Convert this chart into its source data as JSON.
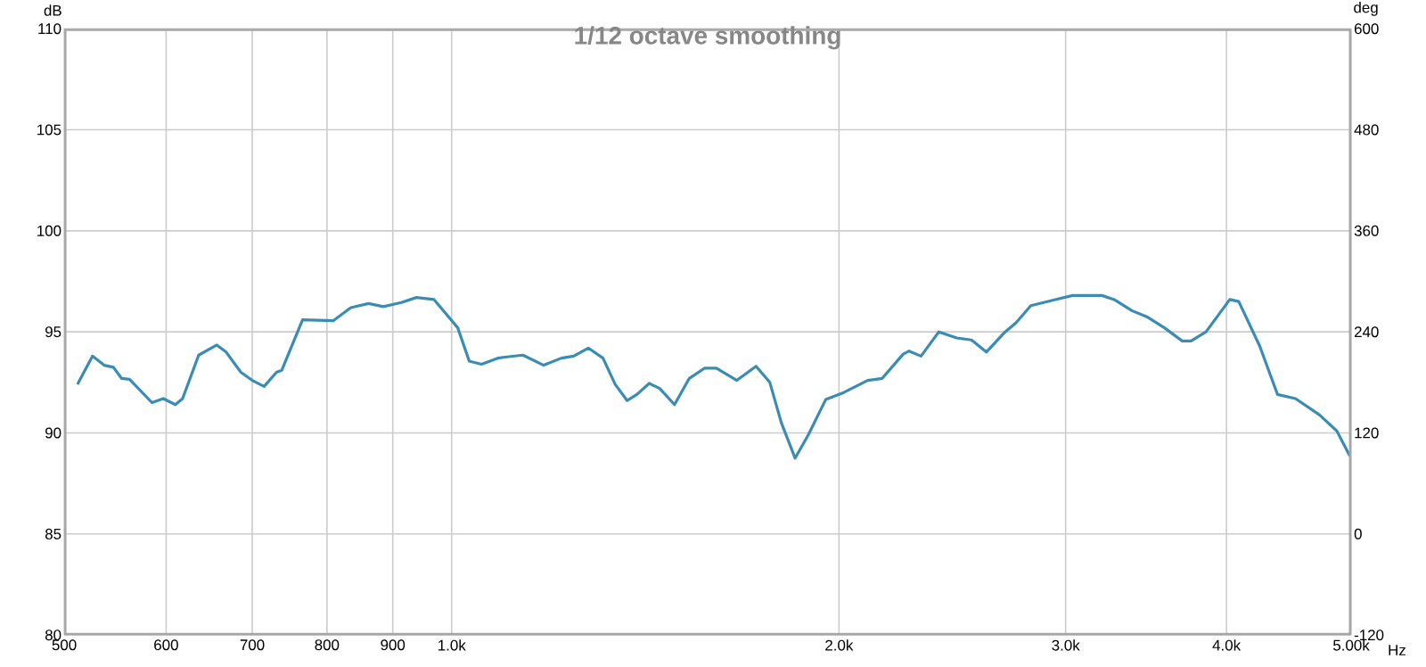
{
  "chart_data": {
    "type": "line",
    "title": "1/12 octave smoothing",
    "xlabel": "Hz",
    "ylabel": "dB",
    "y2label": "deg",
    "log": "x",
    "grid": true,
    "color": "#3a8cb4",
    "x": [
      512,
      526,
      537,
      546,
      554,
      562,
      585,
      597,
      610,
      618,
      636,
      657,
      668,
      686,
      700,
      715,
      731,
      738,
      766,
      809,
      835,
      862,
      885,
      914,
      939,
      969,
      1011,
      1032,
      1055,
      1086,
      1100,
      1136,
      1179,
      1217,
      1244,
      1277,
      1311,
      1340,
      1369,
      1393,
      1424,
      1451,
      1490,
      1530,
      1572,
      1606,
      1666,
      1724,
      1767,
      1804,
      1849,
      1893,
      1953,
      2017,
      2105,
      2161,
      2243,
      2267,
      2316,
      2391,
      2469,
      2535,
      2603,
      2687,
      2745,
      2819,
      2926,
      3037,
      3202,
      3272,
      3378,
      3469,
      3580,
      3696,
      3755,
      3857,
      4024,
      4089,
      4245,
      4383,
      4526,
      4723,
      4873,
      4989
    ],
    "values": [
      92.4,
      93.8,
      93.35,
      93.25,
      92.7,
      92.65,
      91.5,
      91.7,
      91.4,
      91.7,
      93.85,
      94.35,
      94.0,
      93.0,
      92.6,
      92.3,
      93.0,
      93.1,
      95.6,
      95.55,
      96.2,
      96.4,
      96.25,
      96.45,
      96.7,
      96.6,
      95.2,
      93.55,
      93.4,
      93.7,
      93.75,
      93.85,
      93.35,
      93.7,
      93.8,
      94.2,
      93.7,
      92.4,
      91.6,
      91.9,
      92.45,
      92.2,
      91.4,
      92.7,
      93.2,
      93.2,
      92.6,
      93.3,
      92.5,
      90.5,
      88.75,
      89.9,
      91.65,
      92.0,
      92.6,
      92.7,
      93.9,
      94.05,
      93.8,
      95.0,
      94.7,
      94.6,
      94.0,
      94.95,
      95.45,
      96.3,
      96.55,
      96.8,
      96.8,
      96.6,
      96.05,
      95.75,
      95.2,
      94.55,
      94.55,
      95.0,
      96.6,
      96.5,
      94.3,
      91.9,
      91.7,
      90.9,
      90.1,
      88.85
    ],
    "xlim": [
      500,
      5000
    ],
    "xticks": [
      500,
      600,
      700,
      800,
      900,
      {
        "value": 1000,
        "label": "1.0k"
      },
      {
        "value": 2000,
        "label": "2.0k"
      },
      {
        "value": 3000,
        "label": "3.0k"
      },
      {
        "value": 4000,
        "label": "4.0k"
      },
      {
        "value": 5000,
        "label": "5.00k"
      }
    ],
    "ylim": [
      80,
      110
    ],
    "yticks": [
      80,
      85,
      90,
      95,
      100,
      105,
      110
    ],
    "y2lim": [
      -120,
      600
    ],
    "y2ticks": [
      -120,
      0,
      120,
      240,
      360,
      480,
      600
    ]
  }
}
